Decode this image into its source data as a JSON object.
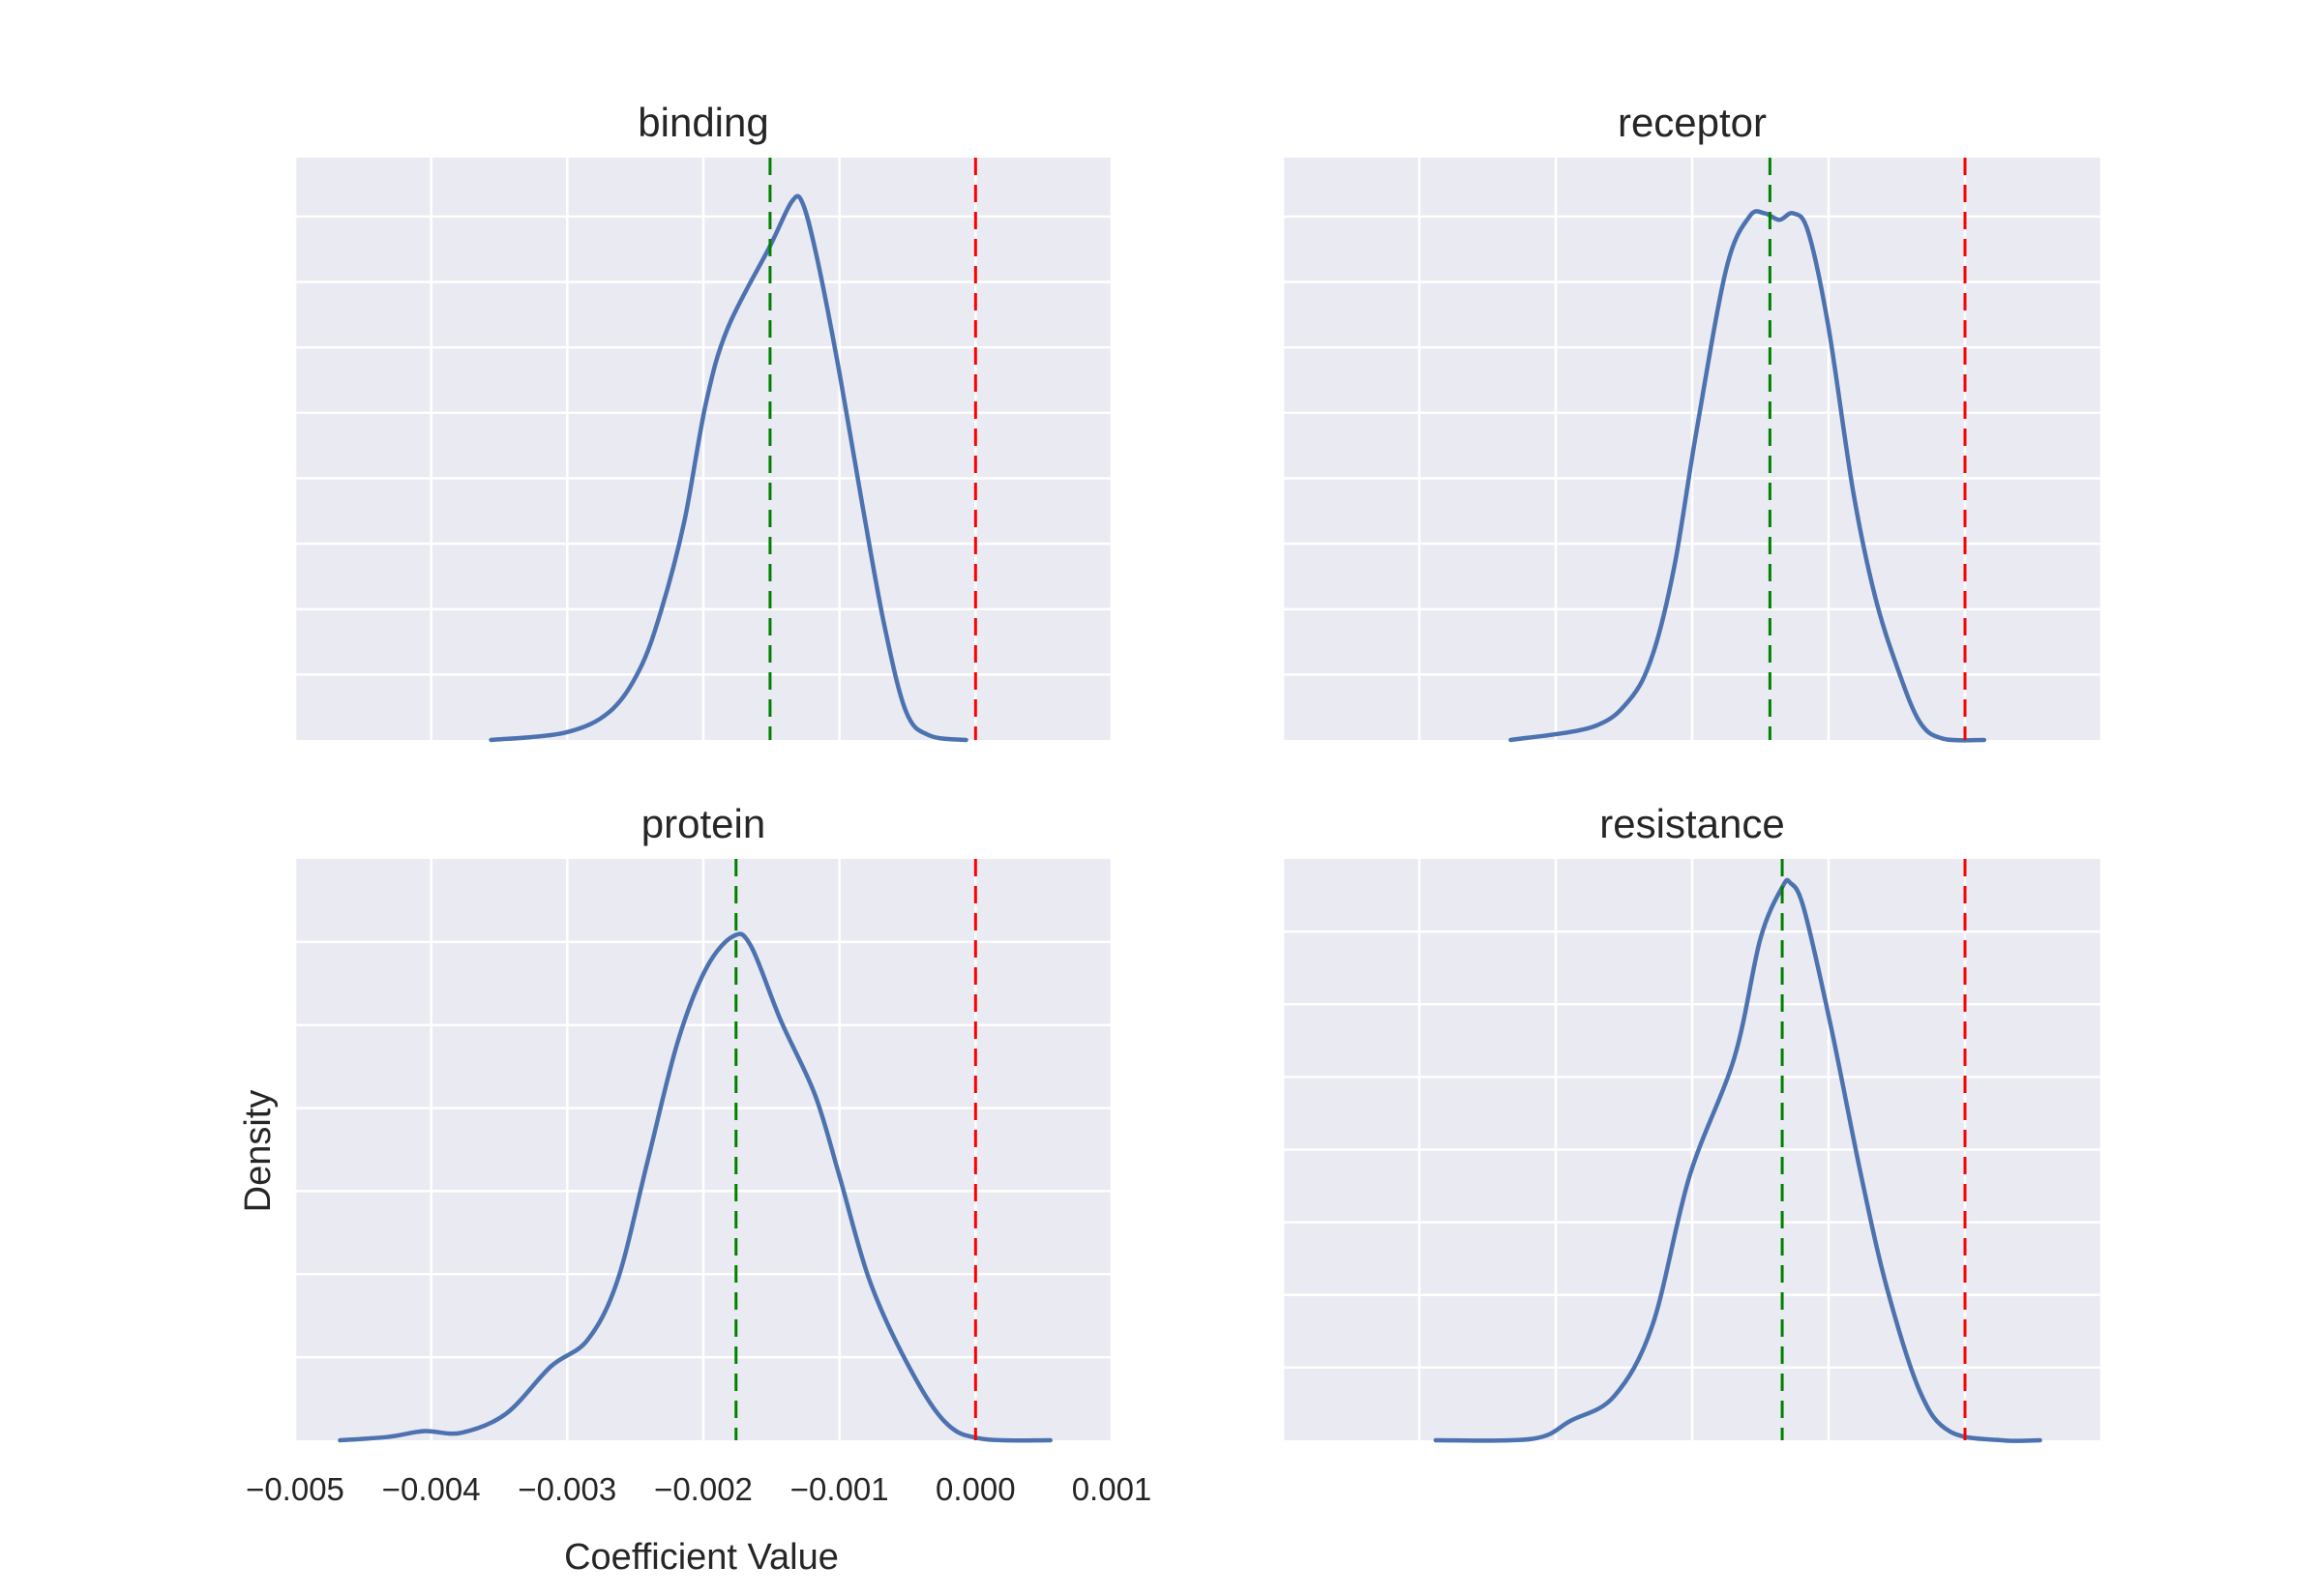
{
  "chart_data": [
    {
      "type": "line",
      "title": "binding",
      "xlim": [
        -0.005,
        0.001
      ],
      "ylim": [
        0,
        8.9
      ],
      "yticks": [
        1,
        2,
        3,
        4,
        5,
        6,
        7,
        8
      ],
      "xticks": [
        -0.005,
        -0.004,
        -0.003,
        -0.002,
        -0.001,
        0.0,
        0.001
      ],
      "x": [
        -0.00356,
        -0.00302,
        -0.00269,
        -0.00247,
        -0.00231,
        -0.00214,
        -0.00198,
        -0.00182,
        -0.00151,
        -0.00135,
        -0.00127,
        -0.00116,
        -0.001,
        -0.00083,
        -0.00067,
        -0.00051,
        -0.00034,
        -7e-05
      ],
      "y": [
        0,
        0.11,
        0.43,
        1.07,
        1.98,
        3.34,
        5.16,
        6.3,
        7.55,
        8.23,
        8.2,
        7.32,
        5.61,
        3.57,
        1.75,
        0.43,
        0.07,
        0
      ],
      "mean_line": -0.00151,
      "zero_line": 0.0
    },
    {
      "type": "line",
      "title": "receptor",
      "xlim": [
        -0.005,
        0.001
      ],
      "ylim": [
        0,
        8.9
      ],
      "yticks": [
        1,
        2,
        3,
        4,
        5,
        6,
        7,
        8
      ],
      "xticks": [
        -0.005,
        -0.004,
        -0.003,
        -0.002,
        -0.001,
        0.0,
        0.001
      ],
      "x": [
        -0.00333,
        -0.00273,
        -0.00246,
        -0.00229,
        -0.00213,
        -0.00197,
        -0.00175,
        -0.00158,
        -0.00147,
        -0.00136,
        -0.00126,
        -0.00115,
        -0.001,
        -0.00082,
        -0.00066,
        -0.00049,
        -0.00033,
        -0.00016,
        0.00014
      ],
      "y": [
        0,
        0.2,
        0.61,
        1.3,
        2.66,
        4.7,
        7.2,
        8.0,
        8.05,
        7.95,
        8.05,
        7.77,
        6.3,
        3.8,
        2.2,
        1.07,
        0.27,
        0.02,
        0
      ],
      "mean_line": -0.00143,
      "zero_line": 0.0
    },
    {
      "type": "line",
      "title": "protein",
      "xlabel": "Coefficient Value",
      "ylabel": "Density",
      "xlim": [
        -0.005,
        0.001
      ],
      "ylim": [
        0,
        7
      ],
      "yticks": [
        1,
        2,
        3,
        4,
        5,
        6
      ],
      "xticks": [
        -0.005,
        -0.004,
        -0.003,
        -0.002,
        -0.001,
        0.0,
        0.001
      ],
      "xtick_labels": [
        "−0.005",
        "−0.004",
        "−0.003",
        "−0.002",
        "−0.001",
        "0.000",
        "0.001"
      ],
      "x": [
        -0.00467,
        -0.00432,
        -0.00405,
        -0.00378,
        -0.00345,
        -0.00312,
        -0.00285,
        -0.00263,
        -0.00241,
        -0.00219,
        -0.00198,
        -0.00178,
        -0.00165,
        -0.00143,
        -0.00118,
        -0.001,
        -0.00078,
        -0.00051,
        -0.00023,
        4e-05,
        0.00055
      ],
      "y": [
        0,
        0.04,
        0.11,
        0.09,
        0.32,
        0.89,
        1.21,
        1.93,
        3.36,
        4.79,
        5.68,
        6.07,
        5.95,
        5.05,
        4.16,
        3.18,
        1.93,
        0.95,
        0.23,
        0.02,
        0
      ],
      "mean_line": -0.00176,
      "zero_line": 0.0
    },
    {
      "type": "line",
      "title": "resistance",
      "xlim": [
        -0.005,
        0.001
      ],
      "ylim": [
        0,
        8
      ],
      "yticks": [
        1,
        2,
        3,
        4,
        5,
        6,
        7
      ],
      "xticks": [
        -0.005,
        -0.004,
        -0.003,
        -0.002,
        -0.001,
        0.0,
        0.001
      ],
      "x": [
        -0.00388,
        -0.00317,
        -0.00289,
        -0.00257,
        -0.00229,
        -0.00202,
        -0.00169,
        -0.0015,
        -0.00134,
        -0.00128,
        -0.00118,
        -0.00098,
        -0.00076,
        -0.00057,
        -0.00033,
        -0.00011,
        0.00027,
        0.00055
      ],
      "y": [
        0,
        0.02,
        0.27,
        0.61,
        1.59,
        3.63,
        5.27,
        6.9,
        7.61,
        7.67,
        7.31,
        5.67,
        3.63,
        2.08,
        0.67,
        0.12,
        0,
        0
      ],
      "mean_line": -0.00134,
      "zero_line": 0.0
    }
  ],
  "colors": {
    "background": "#eaeaf2",
    "grid": "#ffffff",
    "curve": "#4c72b0",
    "mean": "#008000",
    "zero": "#ff0000"
  }
}
